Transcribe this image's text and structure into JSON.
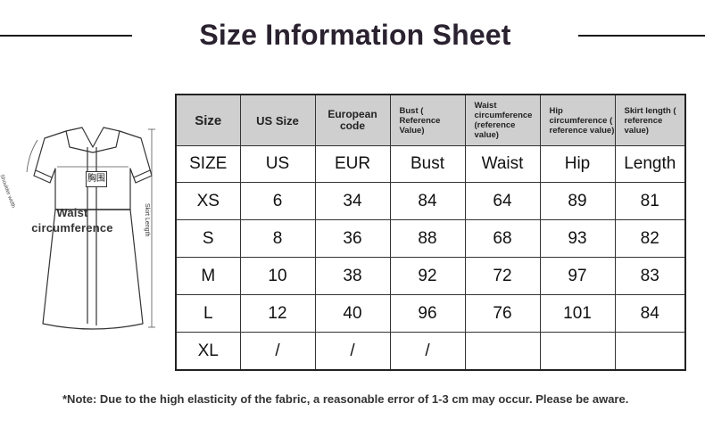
{
  "title": "Size Information Sheet",
  "garment": {
    "bust_label": "胸围",
    "waist_label": "Waist circumference",
    "shoulder_label": "Shoulder width",
    "skirt_label": "Skirt Length"
  },
  "table": {
    "headers": [
      "Size",
      "US Size",
      "European code",
      "Bust ( Reference Value)",
      "Waist circumference (reference value)",
      "Hip circumference ( reference value)",
      "Skirt length ( reference value)"
    ],
    "units": [
      "SIZE",
      "US",
      "EUR",
      "Bust",
      "Waist",
      "Hip",
      "Length"
    ],
    "rows": [
      [
        "XS",
        "6",
        "34",
        "84",
        "64",
        "89",
        "81"
      ],
      [
        "S",
        "8",
        "36",
        "88",
        "68",
        "93",
        "82"
      ],
      [
        "M",
        "10",
        "38",
        "92",
        "72",
        "97",
        "83"
      ],
      [
        "L",
        "12",
        "40",
        "96",
        "76",
        "101",
        "84"
      ],
      [
        "XL",
        "/",
        "/",
        "/",
        "",
        "",
        ""
      ]
    ]
  },
  "note": "*Note: Due to the high elasticity of the fabric, a reasonable error of 1-3 cm may occur. Please be aware."
}
